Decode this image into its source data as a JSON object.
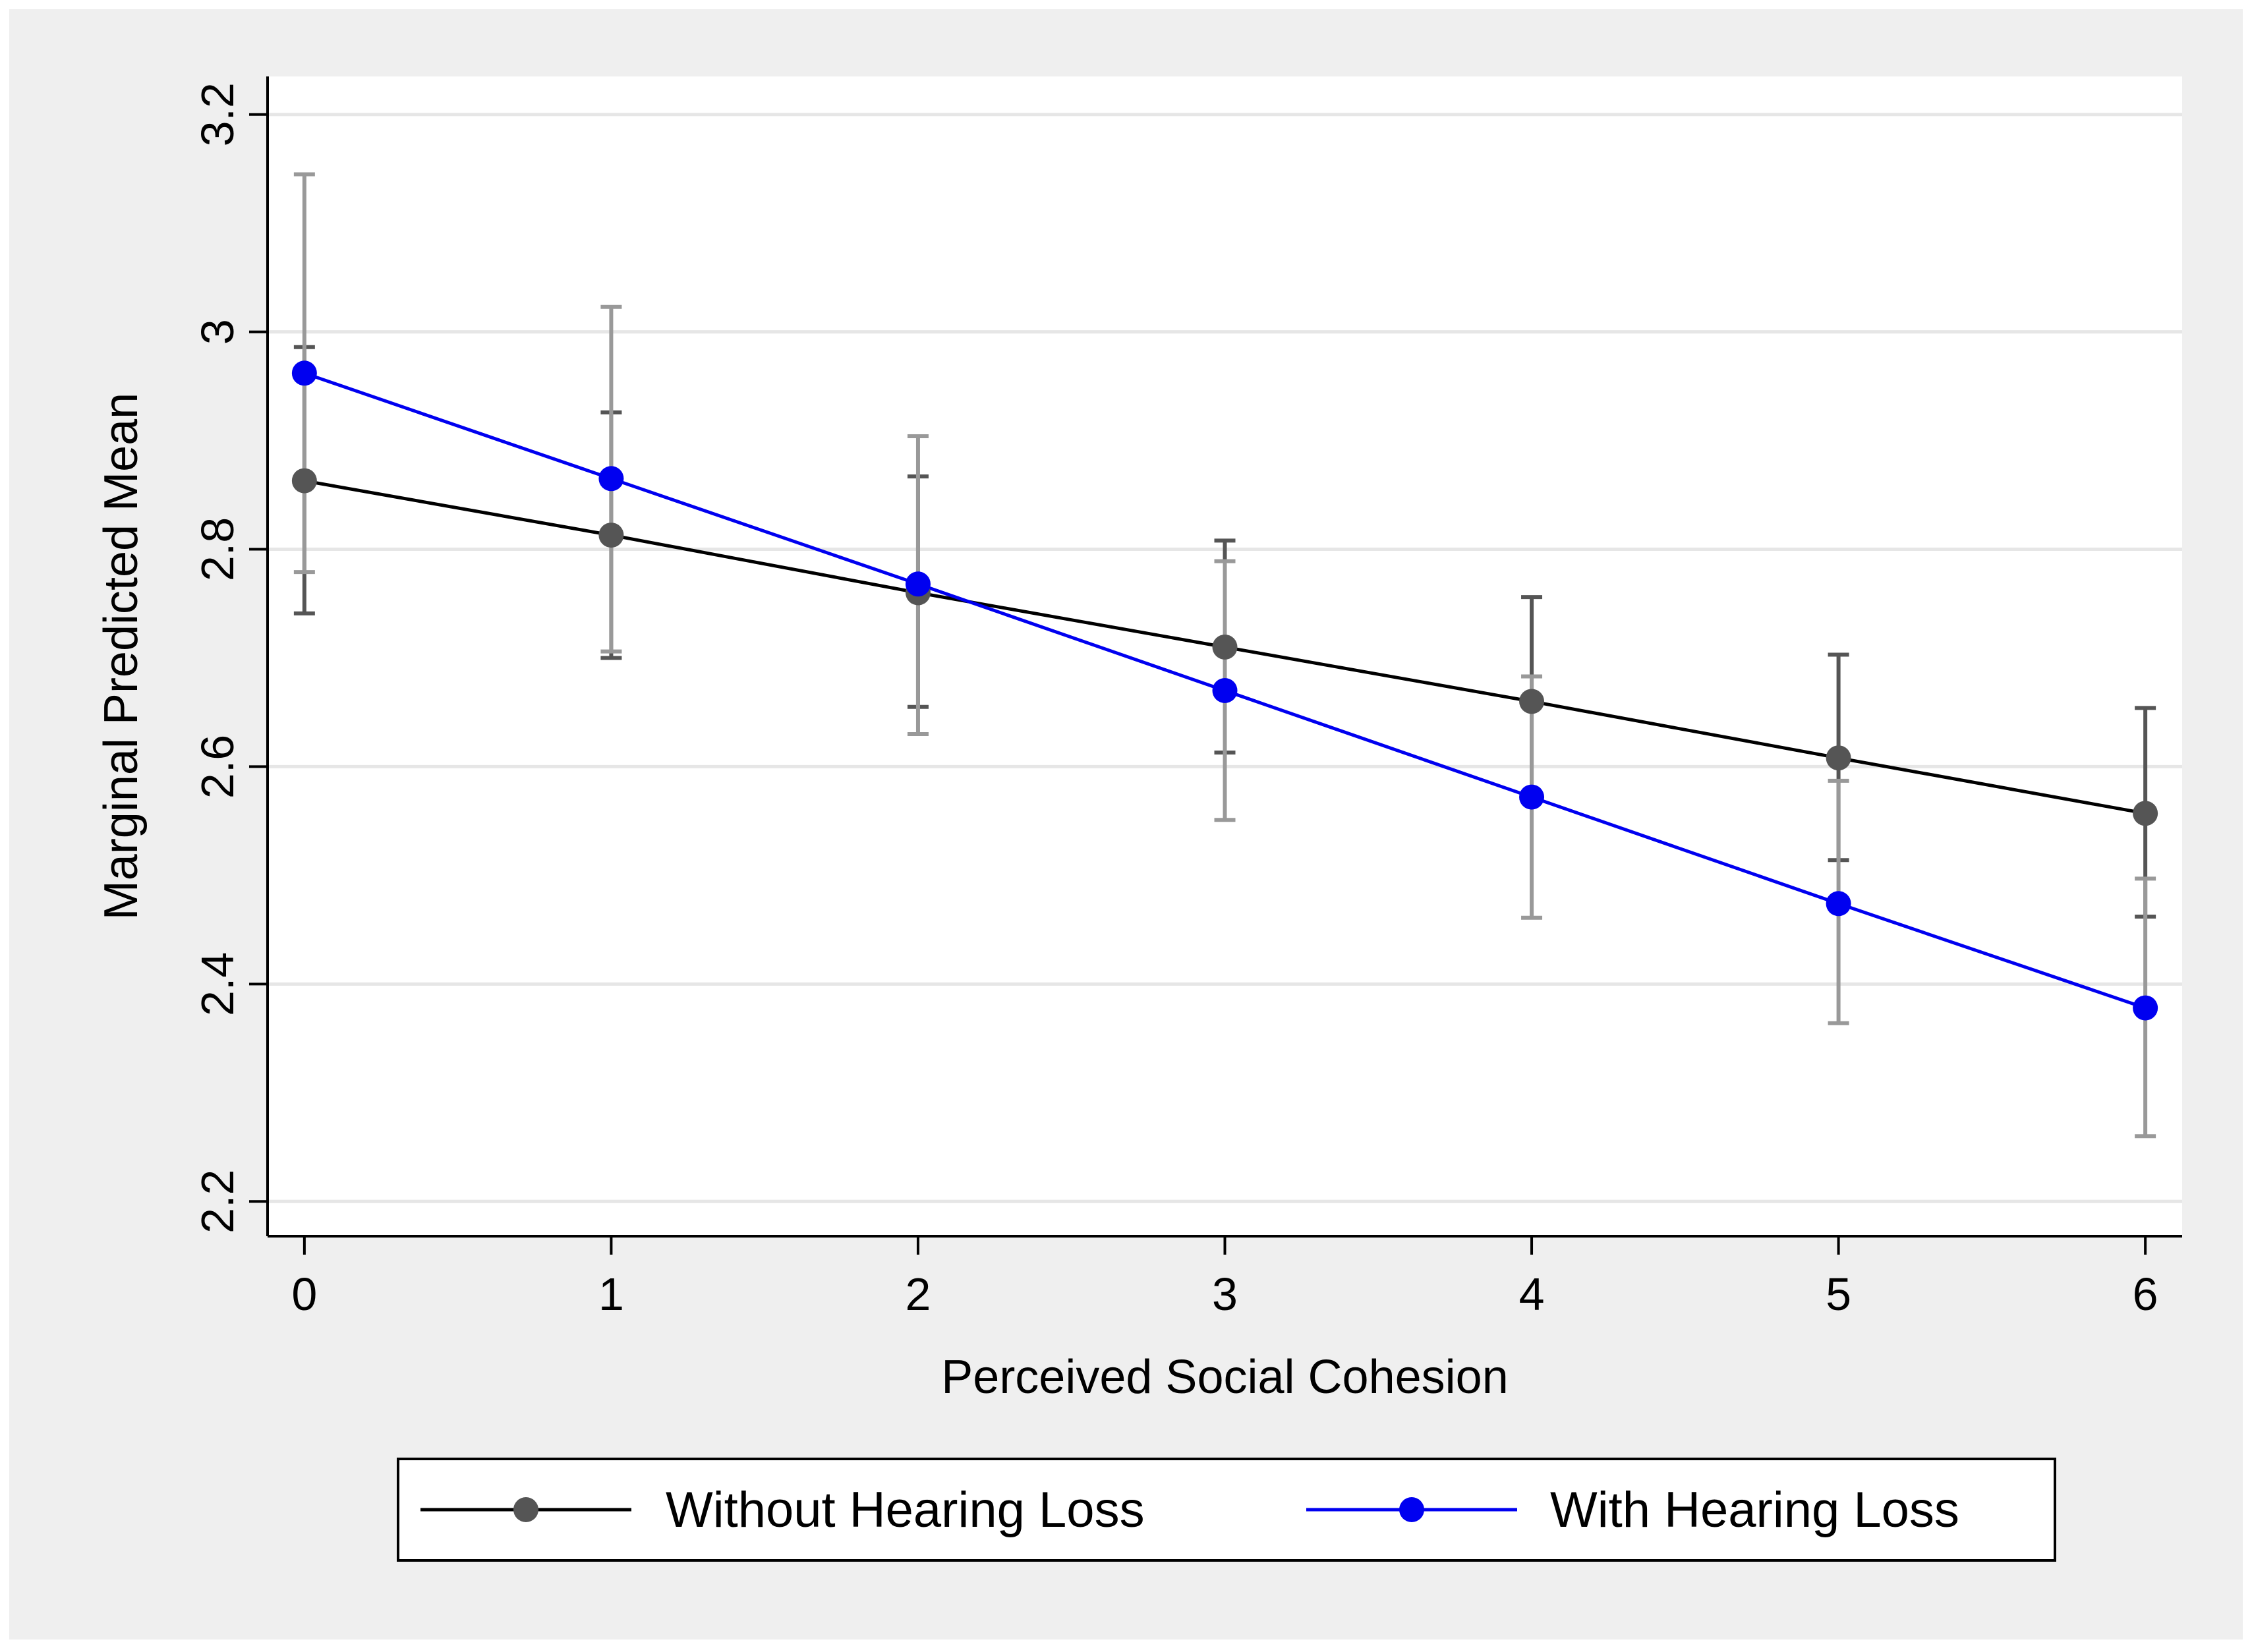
{
  "chart_data": {
    "type": "line",
    "xlabel": "Perceived Social Cohesion",
    "ylabel": "Marginal Predicted Mean",
    "xlim": [
      -0.12,
      6.12
    ],
    "ylim": [
      2.168,
      3.235
    ],
    "x": [
      0,
      1,
      2,
      3,
      4,
      5,
      6
    ],
    "x_tick_labels": [
      "0",
      "1",
      "2",
      "3",
      "4",
      "5",
      "6"
    ],
    "y_ticks": [
      2.2,
      2.4,
      2.6,
      2.8,
      3.0,
      3.2
    ],
    "y_tick_labels": [
      "2.2",
      "2.4",
      "2.6",
      "2.8",
      "3",
      "3.2"
    ],
    "grid": true,
    "legend_position": "bottom",
    "series": [
      {
        "name": "Without Hearing Loss",
        "values": [
          2.863,
          2.813,
          2.76,
          2.71,
          2.66,
          2.608,
          2.557
        ],
        "ci_lower": [
          2.741,
          2.7,
          2.655,
          2.613,
          2.568,
          2.514,
          2.462
        ],
        "ci_upper": [
          2.986,
          2.926,
          2.867,
          2.808,
          2.756,
          2.703,
          2.654
        ],
        "line_color": "#000000",
        "marker_color": "#555555",
        "error_bar_color": "#555555"
      },
      {
        "name": "With Hearing Loss",
        "values": [
          2.962,
          2.865,
          2.768,
          2.67,
          2.572,
          2.474,
          2.378
        ],
        "ci_lower": [
          2.779,
          2.706,
          2.63,
          2.551,
          2.461,
          2.364,
          2.26
        ],
        "ci_upper": [
          3.145,
          3.023,
          2.904,
          2.789,
          2.683,
          2.587,
          2.497
        ],
        "line_color": "#0000f0",
        "marker_color": "#0000f0",
        "error_bar_color": "#999999"
      }
    ]
  },
  "colors": {
    "outer_background": "#efefef",
    "plot_background": "#ffffff",
    "gridline": "#e6e6e6",
    "axis": "#000000",
    "legend_border": "#000000"
  }
}
